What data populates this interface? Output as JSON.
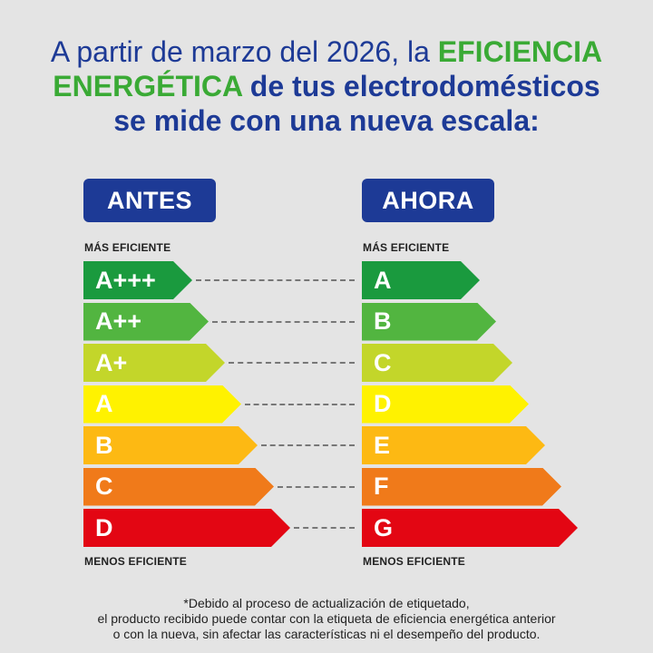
{
  "headline": {
    "line1_plain": "A partir de marzo del 2026, la ",
    "line1_green": "EFICIENCIA",
    "line2_green": "ENERGÉTICA",
    "line2_bold": " de tus electrodomésticos",
    "line3_bold": "se mide con una nueva escala:"
  },
  "before": {
    "title": "ANTES",
    "top_label": "MÁS EFICIENTE",
    "bottom_label": "MENOS EFICIENTE",
    "classes": [
      "A+++",
      "A++",
      "A+",
      "A",
      "B",
      "C",
      "D"
    ]
  },
  "after": {
    "title": "AHORA",
    "top_label": "MÁS EFICIENTE",
    "bottom_label": "MENOS EFICIENTE",
    "classes": [
      "A",
      "B",
      "C",
      "D",
      "E",
      "F",
      "G"
    ]
  },
  "colors": {
    "accent_blue": "#1d3a96",
    "accent_green": "#3aaa35",
    "scale": [
      "#1a9a3e",
      "#52b540",
      "#c3d62a",
      "#fff200",
      "#fdb913",
      "#f07a1a",
      "#e30613"
    ]
  },
  "footnote": {
    "line1": "*Debido al proceso de actualización de etiquetado,",
    "line2": "el producto recibido puede contar con la etiqueta de eficiencia energética anterior",
    "line3": "o con la nueva, sin afectar las características ni el desempeño del producto."
  }
}
